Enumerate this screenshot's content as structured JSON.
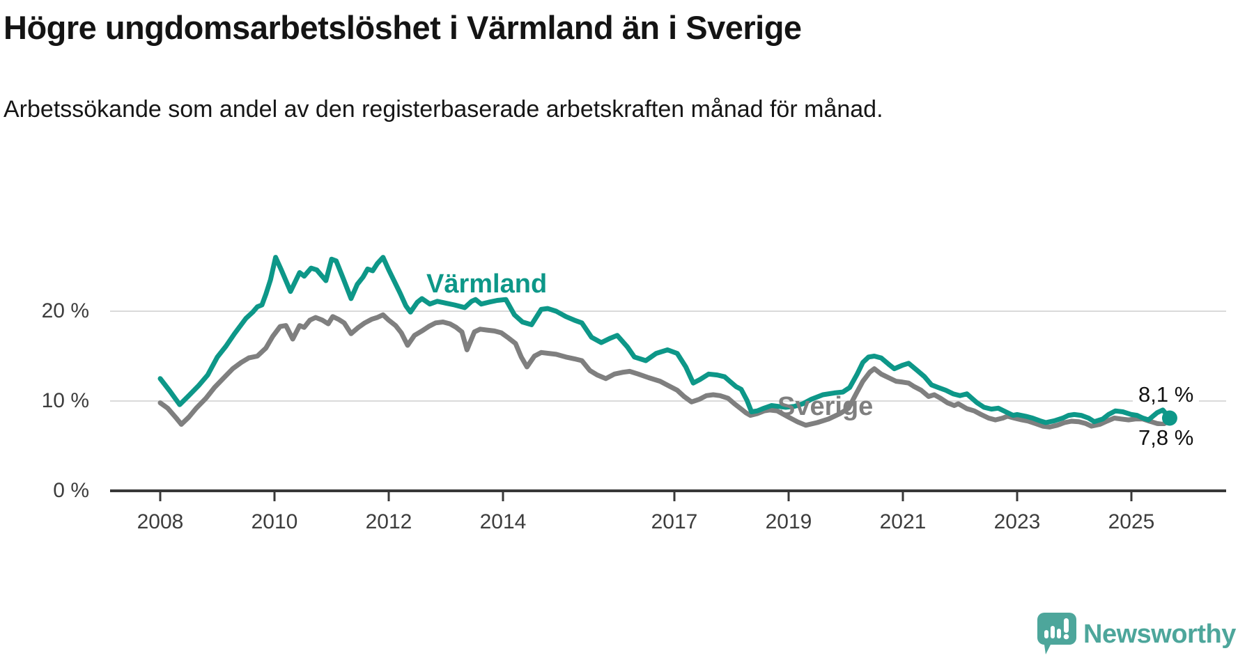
{
  "header": {
    "title": "Högre ungdomsarbetslöshet i Värmland än i Sverige",
    "subtitle": "Arbetssökande som andel av den registerbaserade arbetskraften månad för månad."
  },
  "chart_data": {
    "type": "line",
    "title": "Högre ungdomsarbetslöshet i Värmland än i Sverige",
    "subtitle": "Arbetssökande som andel av den registerbaserade arbetskraften månad för månad.",
    "unit": "%",
    "xlabel": "",
    "ylabel": "",
    "legend_position": "inline-labels-on-lines",
    "grid": true,
    "x_axis": {
      "range": [
        2007.1,
        2026.7
      ],
      "ticks": [
        {
          "label": "2008",
          "year": 2008
        },
        {
          "label": "2010",
          "year": 2010
        },
        {
          "label": "2012",
          "year": 2012
        },
        {
          "label": "2014",
          "year": 2014
        },
        {
          "label": "2017",
          "year": 2017
        },
        {
          "label": "2019",
          "year": 2019
        },
        {
          "label": "2021",
          "year": 2021
        },
        {
          "label": "2023",
          "year": 2023
        },
        {
          "label": "2025",
          "year": 2025
        }
      ]
    },
    "y_axis": {
      "range": [
        0,
        27
      ],
      "ticks": [
        {
          "label": "20 %",
          "value": 20
        },
        {
          "label": "10 %",
          "value": 10
        },
        {
          "label": "0 %",
          "value": 0
        }
      ]
    },
    "series": [
      {
        "name": "Värmland",
        "label": "Värmland",
        "color": "#0D9788",
        "end_label": "8,1 %",
        "end_value": 8.1,
        "points": [
          [
            2008.0,
            12.5
          ],
          [
            2008.17,
            11.1
          ],
          [
            2008.34,
            9.6
          ],
          [
            2008.5,
            10.6
          ],
          [
            2008.67,
            11.7
          ],
          [
            2008.83,
            12.9
          ],
          [
            2009.0,
            14.9
          ],
          [
            2009.15,
            16.1
          ],
          [
            2009.3,
            17.5
          ],
          [
            2009.5,
            19.2
          ],
          [
            2009.62,
            19.9
          ],
          [
            2009.7,
            20.5
          ],
          [
            2009.78,
            20.7
          ],
          [
            2009.85,
            21.9
          ],
          [
            2009.93,
            23.5
          ],
          [
            2010.02,
            26.0
          ],
          [
            2010.12,
            24.6
          ],
          [
            2010.28,
            22.2
          ],
          [
            2010.44,
            24.3
          ],
          [
            2010.52,
            23.9
          ],
          [
            2010.64,
            24.8
          ],
          [
            2010.74,
            24.6
          ],
          [
            2010.9,
            23.4
          ],
          [
            2011.0,
            25.8
          ],
          [
            2011.08,
            25.6
          ],
          [
            2011.2,
            23.7
          ],
          [
            2011.34,
            21.4
          ],
          [
            2011.45,
            23.0
          ],
          [
            2011.55,
            23.8
          ],
          [
            2011.63,
            24.7
          ],
          [
            2011.72,
            24.5
          ],
          [
            2011.8,
            25.3
          ],
          [
            2011.9,
            26.0
          ],
          [
            2012.0,
            24.6
          ],
          [
            2012.1,
            23.3
          ],
          [
            2012.2,
            22.0
          ],
          [
            2012.3,
            20.6
          ],
          [
            2012.38,
            19.9
          ],
          [
            2012.5,
            21.0
          ],
          [
            2012.58,
            21.4
          ],
          [
            2012.72,
            20.8
          ],
          [
            2012.85,
            21.1
          ],
          [
            2013.0,
            20.9
          ],
          [
            2013.15,
            20.7
          ],
          [
            2013.33,
            20.4
          ],
          [
            2013.45,
            21.1
          ],
          [
            2013.52,
            21.3
          ],
          [
            2013.62,
            20.8
          ],
          [
            2013.75,
            21.0
          ],
          [
            2013.9,
            21.2
          ],
          [
            2014.05,
            21.3
          ],
          [
            2014.2,
            19.6
          ],
          [
            2014.34,
            18.8
          ],
          [
            2014.5,
            18.5
          ],
          [
            2014.67,
            20.2
          ],
          [
            2014.78,
            20.3
          ],
          [
            2014.93,
            20.0
          ],
          [
            2015.1,
            19.4
          ],
          [
            2015.25,
            19.0
          ],
          [
            2015.38,
            18.7
          ],
          [
            2015.55,
            17.1
          ],
          [
            2015.72,
            16.5
          ],
          [
            2015.88,
            17.0
          ],
          [
            2016.0,
            17.3
          ],
          [
            2016.18,
            16.0
          ],
          [
            2016.3,
            14.9
          ],
          [
            2016.5,
            14.5
          ],
          [
            2016.68,
            15.3
          ],
          [
            2016.88,
            15.7
          ],
          [
            2017.05,
            15.3
          ],
          [
            2017.2,
            13.8
          ],
          [
            2017.33,
            12.0
          ],
          [
            2017.45,
            12.4
          ],
          [
            2017.6,
            13.0
          ],
          [
            2017.75,
            12.9
          ],
          [
            2017.88,
            12.7
          ],
          [
            2017.97,
            12.2
          ],
          [
            2018.08,
            11.6
          ],
          [
            2018.17,
            11.3
          ],
          [
            2018.27,
            10.1
          ],
          [
            2018.35,
            8.8
          ],
          [
            2018.45,
            8.9
          ],
          [
            2018.57,
            9.2
          ],
          [
            2018.7,
            9.5
          ],
          [
            2018.82,
            9.4
          ],
          [
            2018.95,
            9.3
          ],
          [
            2019.1,
            9.4
          ],
          [
            2019.25,
            9.7
          ],
          [
            2019.4,
            10.2
          ],
          [
            2019.6,
            10.7
          ],
          [
            2019.8,
            10.9
          ],
          [
            2019.95,
            11.0
          ],
          [
            2020.07,
            11.5
          ],
          [
            2020.2,
            13.0
          ],
          [
            2020.3,
            14.3
          ],
          [
            2020.4,
            14.9
          ],
          [
            2020.5,
            15.0
          ],
          [
            2020.62,
            14.8
          ],
          [
            2020.75,
            14.1
          ],
          [
            2020.85,
            13.6
          ],
          [
            2021.0,
            14.0
          ],
          [
            2021.1,
            14.2
          ],
          [
            2021.25,
            13.4
          ],
          [
            2021.38,
            12.7
          ],
          [
            2021.5,
            11.8
          ],
          [
            2021.62,
            11.5
          ],
          [
            2021.75,
            11.2
          ],
          [
            2021.88,
            10.8
          ],
          [
            2022.0,
            10.6
          ],
          [
            2022.12,
            10.8
          ],
          [
            2022.3,
            9.8
          ],
          [
            2022.42,
            9.3
          ],
          [
            2022.55,
            9.1
          ],
          [
            2022.67,
            9.2
          ],
          [
            2022.8,
            8.8
          ],
          [
            2022.93,
            8.4
          ],
          [
            2023.0,
            8.5
          ],
          [
            2023.15,
            8.3
          ],
          [
            2023.27,
            8.1
          ],
          [
            2023.4,
            7.8
          ],
          [
            2023.5,
            7.6
          ],
          [
            2023.65,
            7.8
          ],
          [
            2023.8,
            8.1
          ],
          [
            2023.9,
            8.4
          ],
          [
            2024.0,
            8.5
          ],
          [
            2024.12,
            8.4
          ],
          [
            2024.25,
            8.1
          ],
          [
            2024.35,
            7.7
          ],
          [
            2024.5,
            8.0
          ],
          [
            2024.6,
            8.5
          ],
          [
            2024.72,
            8.9
          ],
          [
            2024.85,
            8.8
          ],
          [
            2025.0,
            8.5
          ],
          [
            2025.1,
            8.4
          ],
          [
            2025.2,
            8.1
          ],
          [
            2025.3,
            7.9
          ],
          [
            2025.45,
            8.7
          ],
          [
            2025.55,
            9.0
          ],
          [
            2025.67,
            8.1
          ]
        ]
      },
      {
        "name": "Sverige",
        "label": "Sverige",
        "color": "#7F7F7F",
        "end_label": "7,8 %",
        "end_value": 7.8,
        "points": [
          [
            2008.0,
            9.8
          ],
          [
            2008.13,
            9.2
          ],
          [
            2008.28,
            8.1
          ],
          [
            2008.37,
            7.4
          ],
          [
            2008.5,
            8.2
          ],
          [
            2008.63,
            9.2
          ],
          [
            2008.8,
            10.3
          ],
          [
            2008.95,
            11.5
          ],
          [
            2009.1,
            12.5
          ],
          [
            2009.27,
            13.6
          ],
          [
            2009.42,
            14.3
          ],
          [
            2009.55,
            14.8
          ],
          [
            2009.7,
            15.0
          ],
          [
            2009.85,
            15.9
          ],
          [
            2009.97,
            17.2
          ],
          [
            2010.1,
            18.3
          ],
          [
            2010.2,
            18.4
          ],
          [
            2010.32,
            16.9
          ],
          [
            2010.44,
            18.4
          ],
          [
            2010.52,
            18.2
          ],
          [
            2010.62,
            19.0
          ],
          [
            2010.72,
            19.3
          ],
          [
            2010.84,
            19.0
          ],
          [
            2010.94,
            18.6
          ],
          [
            2011.02,
            19.4
          ],
          [
            2011.12,
            19.1
          ],
          [
            2011.22,
            18.7
          ],
          [
            2011.34,
            17.5
          ],
          [
            2011.47,
            18.2
          ],
          [
            2011.58,
            18.7
          ],
          [
            2011.7,
            19.1
          ],
          [
            2011.8,
            19.3
          ],
          [
            2011.9,
            19.6
          ],
          [
            2012.0,
            19.0
          ],
          [
            2012.12,
            18.4
          ],
          [
            2012.22,
            17.6
          ],
          [
            2012.33,
            16.2
          ],
          [
            2012.45,
            17.3
          ],
          [
            2012.58,
            17.8
          ],
          [
            2012.7,
            18.3
          ],
          [
            2012.82,
            18.7
          ],
          [
            2012.95,
            18.8
          ],
          [
            2013.07,
            18.6
          ],
          [
            2013.18,
            18.2
          ],
          [
            2013.28,
            17.7
          ],
          [
            2013.37,
            15.7
          ],
          [
            2013.5,
            17.7
          ],
          [
            2013.6,
            18.0
          ],
          [
            2013.72,
            17.9
          ],
          [
            2013.85,
            17.8
          ],
          [
            2013.97,
            17.6
          ],
          [
            2014.1,
            17.0
          ],
          [
            2014.22,
            16.4
          ],
          [
            2014.32,
            14.9
          ],
          [
            2014.42,
            13.8
          ],
          [
            2014.55,
            15.0
          ],
          [
            2014.67,
            15.4
          ],
          [
            2014.8,
            15.3
          ],
          [
            2014.93,
            15.2
          ],
          [
            2015.1,
            14.9
          ],
          [
            2015.25,
            14.7
          ],
          [
            2015.38,
            14.5
          ],
          [
            2015.52,
            13.4
          ],
          [
            2015.65,
            12.9
          ],
          [
            2015.8,
            12.5
          ],
          [
            2015.95,
            13.0
          ],
          [
            2016.1,
            13.2
          ],
          [
            2016.22,
            13.3
          ],
          [
            2016.37,
            13.0
          ],
          [
            2016.55,
            12.6
          ],
          [
            2016.75,
            12.2
          ],
          [
            2016.9,
            11.7
          ],
          [
            2017.05,
            11.2
          ],
          [
            2017.17,
            10.5
          ],
          [
            2017.3,
            9.9
          ],
          [
            2017.44,
            10.2
          ],
          [
            2017.56,
            10.6
          ],
          [
            2017.68,
            10.7
          ],
          [
            2017.8,
            10.6
          ],
          [
            2017.94,
            10.3
          ],
          [
            2018.05,
            9.7
          ],
          [
            2018.15,
            9.2
          ],
          [
            2018.25,
            8.7
          ],
          [
            2018.33,
            8.4
          ],
          [
            2018.45,
            8.6
          ],
          [
            2018.57,
            8.9
          ],
          [
            2018.67,
            9.0
          ],
          [
            2018.8,
            8.9
          ],
          [
            2019.0,
            8.2
          ],
          [
            2019.15,
            7.7
          ],
          [
            2019.3,
            7.3
          ],
          [
            2019.5,
            7.6
          ],
          [
            2019.7,
            8.0
          ],
          [
            2019.9,
            8.6
          ],
          [
            2020.05,
            9.2
          ],
          [
            2020.18,
            10.8
          ],
          [
            2020.3,
            12.2
          ],
          [
            2020.42,
            13.2
          ],
          [
            2020.5,
            13.6
          ],
          [
            2020.62,
            13.0
          ],
          [
            2020.75,
            12.6
          ],
          [
            2020.88,
            12.2
          ],
          [
            2021.0,
            12.1
          ],
          [
            2021.1,
            12.0
          ],
          [
            2021.2,
            11.6
          ],
          [
            2021.32,
            11.2
          ],
          [
            2021.45,
            10.5
          ],
          [
            2021.55,
            10.7
          ],
          [
            2021.66,
            10.3
          ],
          [
            2021.78,
            9.8
          ],
          [
            2021.9,
            9.5
          ],
          [
            2021.97,
            9.7
          ],
          [
            2022.12,
            9.15
          ],
          [
            2022.25,
            8.9
          ],
          [
            2022.37,
            8.5
          ],
          [
            2022.5,
            8.1
          ],
          [
            2022.62,
            7.9
          ],
          [
            2022.75,
            8.1
          ],
          [
            2022.83,
            8.3
          ],
          [
            2022.95,
            8.1
          ],
          [
            2023.08,
            7.9
          ],
          [
            2023.2,
            7.75
          ],
          [
            2023.32,
            7.5
          ],
          [
            2023.45,
            7.2
          ],
          [
            2023.57,
            7.1
          ],
          [
            2023.7,
            7.3
          ],
          [
            2023.83,
            7.6
          ],
          [
            2023.95,
            7.75
          ],
          [
            2024.08,
            7.7
          ],
          [
            2024.2,
            7.5
          ],
          [
            2024.3,
            7.2
          ],
          [
            2024.45,
            7.4
          ],
          [
            2024.57,
            7.75
          ],
          [
            2024.7,
            8.1
          ],
          [
            2024.82,
            8.0
          ],
          [
            2024.95,
            7.9
          ],
          [
            2025.07,
            8.0
          ],
          [
            2025.2,
            8.0
          ],
          [
            2025.32,
            7.75
          ],
          [
            2025.45,
            7.5
          ],
          [
            2025.55,
            7.4
          ],
          [
            2025.67,
            7.8
          ]
        ]
      }
    ]
  },
  "colors": {
    "grid": "#DADADA",
    "axis": "#383838",
    "tick_text": "#3D3D3D",
    "title": "#141414",
    "logo": "#4DA69B"
  },
  "logo": {
    "text": "Newsworthy"
  }
}
